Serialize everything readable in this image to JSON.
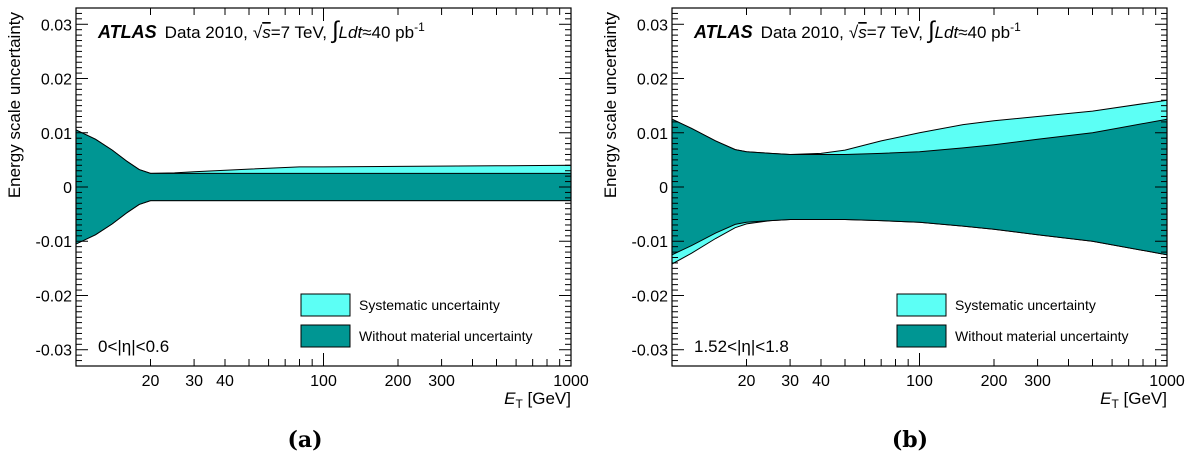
{
  "colors": {
    "systematic": "#5cfff5",
    "without_material": "#009693"
  },
  "captions": [
    "(a)",
    "(b)"
  ],
  "chart_data": [
    {
      "type": "area",
      "panel_label": "(a)",
      "header": {
        "experiment": "ATLAS",
        "data": "Data 2010,",
        "sqrt": "√",
        "s": "s",
        "energy": "=7 TeV,",
        "lumi_integral": "∫",
        "lumi_L": "L",
        "lumi_dt": "dt",
        "lumi_value": "≈40 pb",
        "lumi_exp": "-1"
      },
      "xscale": "log",
      "xlim": [
        10,
        1000
      ],
      "ylim": [
        -0.033,
        0.033
      ],
      "xlabel": {
        "var": "E",
        "sub": "T",
        "unit": " [GeV]"
      },
      "ylabel": "Energy scale uncertainty",
      "x_ticks": [
        {
          "value": 20,
          "label": "20"
        },
        {
          "value": 30,
          "label": "30"
        },
        {
          "value": 40,
          "label": "40"
        },
        {
          "value": 100,
          "label": "100"
        },
        {
          "value": 200,
          "label": "200"
        },
        {
          "value": 300,
          "label": "300"
        },
        {
          "value": 1000,
          "label": "1000"
        }
      ],
      "y_ticks": [
        {
          "value": 0.03,
          "label": "0.03"
        },
        {
          "value": 0.02,
          "label": "0.02"
        },
        {
          "value": 0.01,
          "label": "0.01"
        },
        {
          "value": 0,
          "label": "0"
        },
        {
          "value": -0.01,
          "label": "-0.01"
        },
        {
          "value": -0.02,
          "label": "-0.02"
        },
        {
          "value": -0.03,
          "label": "-0.03"
        }
      ],
      "legend": [
        "Systematic uncertainty",
        "Without material uncertainty"
      ],
      "legend_position": "bottom-right",
      "eta_label": "0<|η|<0.6",
      "series": [
        {
          "name": "Systematic uncertainty",
          "x": [
            10,
            12,
            14,
            16,
            18,
            20,
            25,
            30,
            50,
            80,
            100,
            200,
            500,
            1000
          ],
          "upper": [
            0.0105,
            0.0088,
            0.0068,
            0.0048,
            0.0032,
            0.0025,
            0.0026,
            0.0028,
            0.0033,
            0.0037,
            0.0037,
            0.0038,
            0.0039,
            0.004
          ],
          "lower": [
            -0.0105,
            -0.0088,
            -0.0068,
            -0.0048,
            -0.0032,
            -0.0025,
            -0.0025,
            -0.0025,
            -0.0025,
            -0.0025,
            -0.0025,
            -0.0025,
            -0.0025,
            -0.0025
          ]
        },
        {
          "name": "Without material uncertainty",
          "x": [
            10,
            12,
            14,
            16,
            18,
            20,
            25,
            30,
            50,
            80,
            100,
            200,
            500,
            1000
          ],
          "upper": [
            0.0105,
            0.0088,
            0.0068,
            0.0048,
            0.0032,
            0.0025,
            0.0025,
            0.0025,
            0.0025,
            0.0025,
            0.0025,
            0.0025,
            0.0025,
            0.0025
          ],
          "lower": [
            -0.0105,
            -0.0088,
            -0.0068,
            -0.0048,
            -0.0032,
            -0.0025,
            -0.0025,
            -0.0025,
            -0.0025,
            -0.0025,
            -0.0025,
            -0.0025,
            -0.0025,
            -0.0025
          ]
        }
      ]
    },
    {
      "type": "area",
      "panel_label": "(b)",
      "header": {
        "experiment": "ATLAS",
        "data": "Data 2010,",
        "sqrt": "√",
        "s": "s",
        "energy": "=7 TeV,",
        "lumi_integral": "∫",
        "lumi_L": "L",
        "lumi_dt": "dt",
        "lumi_value": "≈40 pb",
        "lumi_exp": "-1"
      },
      "xscale": "log",
      "xlim": [
        10,
        1000
      ],
      "ylim": [
        -0.033,
        0.033
      ],
      "xlabel": {
        "var": "E",
        "sub": "T",
        "unit": " [GeV]"
      },
      "ylabel": "Energy scale uncertainty",
      "x_ticks": [
        {
          "value": 20,
          "label": "20"
        },
        {
          "value": 30,
          "label": "30"
        },
        {
          "value": 40,
          "label": "40"
        },
        {
          "value": 100,
          "label": "100"
        },
        {
          "value": 200,
          "label": "200"
        },
        {
          "value": 300,
          "label": "300"
        },
        {
          "value": 1000,
          "label": "1000"
        }
      ],
      "y_ticks": [
        {
          "value": 0.03,
          "label": "0.03"
        },
        {
          "value": 0.02,
          "label": "0.02"
        },
        {
          "value": 0.01,
          "label": "0.01"
        },
        {
          "value": 0,
          "label": "0"
        },
        {
          "value": -0.01,
          "label": "-0.01"
        },
        {
          "value": -0.02,
          "label": "-0.02"
        },
        {
          "value": -0.03,
          "label": "-0.03"
        }
      ],
      "legend": [
        "Systematic uncertainty",
        "Without material uncertainty"
      ],
      "legend_position": "bottom-right",
      "eta_label": "1.52<|η|<1.8",
      "series": [
        {
          "name": "Systematic uncertainty",
          "x": [
            10,
            12,
            15,
            18,
            20,
            25,
            30,
            40,
            50,
            70,
            100,
            150,
            200,
            300,
            500,
            1000
          ],
          "upper": [
            0.0125,
            0.0108,
            0.0085,
            0.0069,
            0.0065,
            0.0062,
            0.006,
            0.0062,
            0.0068,
            0.0085,
            0.01,
            0.0115,
            0.0122,
            0.013,
            0.014,
            0.016
          ],
          "lower": [
            -0.0142,
            -0.0122,
            -0.0095,
            -0.0075,
            -0.0068,
            -0.0062,
            -0.006,
            -0.006,
            -0.006,
            -0.0062,
            -0.0065,
            -0.0072,
            -0.0078,
            -0.0088,
            -0.01,
            -0.0125
          ]
        },
        {
          "name": "Without material uncertainty",
          "x": [
            10,
            12,
            15,
            18,
            20,
            25,
            30,
            40,
            50,
            70,
            100,
            150,
            200,
            300,
            500,
            1000
          ],
          "upper": [
            0.0125,
            0.0108,
            0.0085,
            0.0069,
            0.0065,
            0.0062,
            0.006,
            0.006,
            0.006,
            0.0062,
            0.0065,
            0.0072,
            0.0078,
            0.0088,
            0.01,
            0.0125
          ],
          "lower": [
            -0.0125,
            -0.0108,
            -0.0085,
            -0.0069,
            -0.0065,
            -0.0062,
            -0.006,
            -0.006,
            -0.006,
            -0.0062,
            -0.0065,
            -0.0072,
            -0.0078,
            -0.0088,
            -0.01,
            -0.0125
          ]
        }
      ]
    }
  ]
}
